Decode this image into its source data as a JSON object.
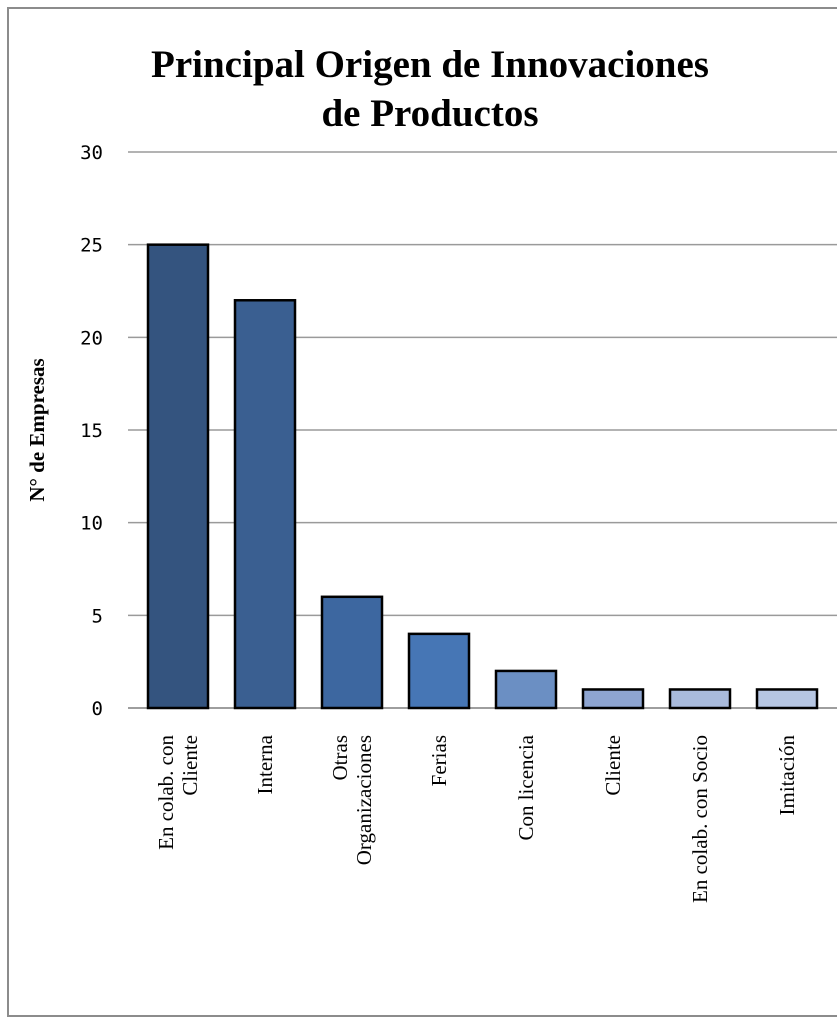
{
  "chart_data": {
    "type": "bar",
    "title_lines": [
      "Principal Origen de Innovaciones",
      "de Productos"
    ],
    "xlabel": "",
    "ylabel": "N° de Empresas",
    "ylim": [
      0,
      30
    ],
    "yticks": [
      0,
      5,
      10,
      15,
      20,
      25,
      30
    ],
    "grid": true,
    "legend": "none",
    "categories": [
      [
        "En colab. con",
        "Cliente"
      ],
      [
        "Interna"
      ],
      [
        "Otras",
        "Organizaciones"
      ],
      [
        "Ferias"
      ],
      [
        "Con licencia"
      ],
      [
        "Cliente"
      ],
      [
        "En colab. con Socio"
      ],
      [
        "Imitación"
      ]
    ],
    "values": [
      25,
      22,
      6,
      4,
      2,
      1,
      1,
      1
    ],
    "colors": [
      "#34547f",
      "#3a5f91",
      "#3d67a0",
      "#4676b5",
      "#6b8fc3",
      "#8ea5d1",
      "#a9bbdd",
      "#b6c6e2"
    ]
  }
}
